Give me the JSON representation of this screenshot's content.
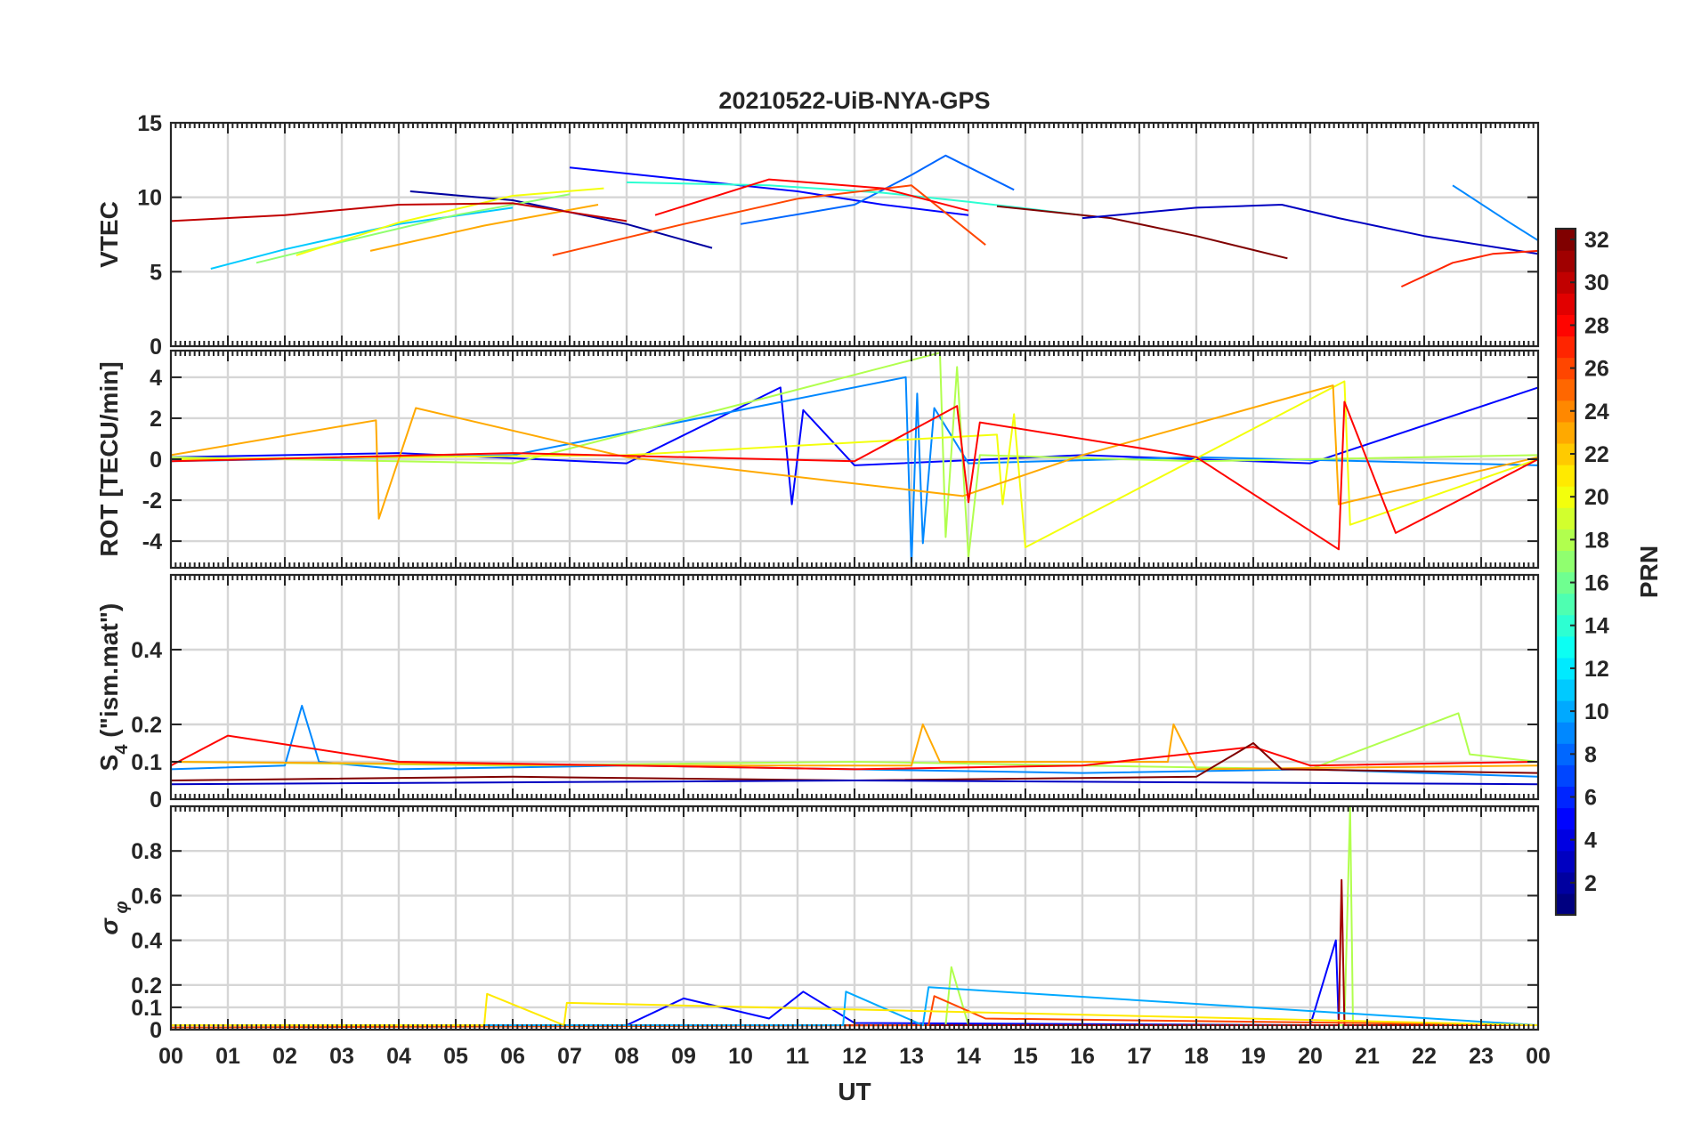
{
  "chart_data": {
    "type": "line",
    "title": "20210522-UiB-NYA-GPS",
    "xlabel": "UT",
    "x_ticks": [
      "00",
      "01",
      "02",
      "03",
      "04",
      "05",
      "06",
      "07",
      "08",
      "09",
      "10",
      "11",
      "12",
      "13",
      "14",
      "15",
      "16",
      "17",
      "18",
      "19",
      "20",
      "21",
      "22",
      "23",
      "00"
    ],
    "xlim": [
      0,
      24
    ],
    "colorbar": {
      "label": "PRN",
      "range": [
        1,
        32
      ],
      "ticks": [
        "2",
        "4",
        "6",
        "8",
        "10",
        "12",
        "14",
        "16",
        "18",
        "20",
        "22",
        "24",
        "26",
        "28",
        "30",
        "32"
      ],
      "colormap": "jet"
    },
    "panels": [
      {
        "ylabel": "VTEC",
        "ylim": [
          0,
          15
        ],
        "y_ticks": [
          0,
          5,
          10,
          15
        ],
        "series": [
          {
            "prn": 2,
            "x": [
              4.2,
              6,
              8,
              9.5
            ],
            "y": [
              10.4,
              9.8,
              8.2,
              6.6
            ]
          },
          {
            "prn": 5,
            "x": [
              7,
              9,
              11,
              12.5,
              14
            ],
            "y": [
              12,
              11.2,
              10.4,
              9.5,
              8.8
            ]
          },
          {
            "prn": 8,
            "x": [
              10,
              12,
              13,
              13.6,
              14.8
            ],
            "y": [
              8.2,
              9.5,
              11.5,
              12.8,
              10.5
            ]
          },
          {
            "prn": 11,
            "x": [
              0.7,
              2,
              4,
              6
            ],
            "y": [
              5.2,
              6.5,
              8.2,
              9.3
            ]
          },
          {
            "prn": 14,
            "x": [
              8,
              10.5,
              12.5,
              14,
              16
            ],
            "y": [
              11,
              10.8,
              10.3,
              9.7,
              8.8
            ]
          },
          {
            "prn": 17,
            "x": [
              1.5,
              3,
              5,
              7
            ],
            "y": [
              5.6,
              7,
              8.8,
              10.2
            ]
          },
          {
            "prn": 20,
            "x": [
              2.2,
              4,
              6,
              7.6
            ],
            "y": [
              6.1,
              8.3,
              10.1,
              10.6
            ]
          },
          {
            "prn": 23,
            "x": [
              3.5,
              5.5,
              7.5
            ],
            "y": [
              6.4,
              8.1,
              9.5
            ]
          },
          {
            "prn": 26,
            "x": [
              6.7,
              9,
              11,
              13,
              14.3
            ],
            "y": [
              6.1,
              8.2,
              9.9,
              10.8,
              6.8
            ]
          },
          {
            "prn": 28,
            "x": [
              8.5,
              10.5,
              12.5,
              14
            ],
            "y": [
              8.8,
              11.2,
              10.6,
              9.1
            ]
          },
          {
            "prn": 30,
            "x": [
              0,
              2,
              4,
              6,
              8
            ],
            "y": [
              8.4,
              8.8,
              9.5,
              9.6,
              8.4
            ]
          },
          {
            "prn": 32,
            "x": [
              14.5,
              16.5,
              18,
              19.6
            ],
            "y": [
              9.4,
              8.6,
              7.4,
              5.9
            ]
          },
          {
            "prn": 3,
            "x": [
              16,
              18,
              19.5,
              20.5,
              22,
              24
            ],
            "y": [
              8.6,
              9.3,
              9.5,
              8.6,
              7.4,
              6.2
            ]
          },
          {
            "prn": 27,
            "x": [
              21.6,
              22.5,
              23.2,
              24
            ],
            "y": [
              4,
              5.6,
              6.2,
              6.4
            ]
          },
          {
            "prn": 9,
            "x": [
              22.5,
              23.5,
              24
            ],
            "y": [
              10.8,
              8.3,
              7.1
            ]
          }
        ]
      },
      {
        "ylabel": "ROT [TECU/min]",
        "ylim": [
          -5.3,
          5.3
        ],
        "y_ticks": [
          -4,
          -2,
          0,
          2,
          4
        ],
        "series": [
          {
            "prn": 5,
            "x": [
              0,
              4,
              8,
              10.7,
              10.9,
              11.1,
              12,
              16,
              20,
              24
            ],
            "y": [
              0.1,
              0.3,
              -0.2,
              3.5,
              -2.2,
              2.4,
              -0.3,
              0.2,
              -0.2,
              3.5
            ]
          },
          {
            "prn": 9,
            "x": [
              0,
              6,
              12.9,
              13.0,
              13.1,
              13.2,
              13.4,
              14,
              18,
              24
            ],
            "y": [
              -0.1,
              0.2,
              4,
              -5.2,
              3.2,
              -4.1,
              2.5,
              -0.2,
              0.1,
              -0.3
            ]
          },
          {
            "prn": 18,
            "x": [
              0,
              6,
              13.5,
              13.6,
              13.8,
              14.0,
              14.2,
              18,
              24
            ],
            "y": [
              0.1,
              -0.2,
              5.2,
              -3.8,
              4.5,
              -4.8,
              0.2,
              -0.1,
              0.2
            ]
          },
          {
            "prn": 20,
            "x": [
              0,
              8,
              14.5,
              14.6,
              14.8,
              15,
              20.6,
              20.7,
              24
            ],
            "y": [
              0,
              0.2,
              1.2,
              -2.2,
              2.2,
              -4.3,
              3.8,
              -3.2,
              0
            ]
          },
          {
            "prn": 23,
            "x": [
              0,
              3.6,
              3.65,
              4.3,
              8,
              13.9,
              16,
              20.4,
              20.5,
              24
            ],
            "y": [
              0.2,
              1.9,
              -2.9,
              2.5,
              0.1,
              -1.8,
              0.2,
              3.6,
              -2.2,
              0.1
            ]
          },
          {
            "prn": 28,
            "x": [
              0,
              6,
              12,
              13.8,
              14.0,
              14.2,
              18,
              20.5,
              20.6,
              21.5,
              24
            ],
            "y": [
              -0.1,
              0.3,
              -0.1,
              2.6,
              -2.1,
              1.8,
              0.1,
              -4.4,
              2.8,
              -3.6,
              0
            ]
          }
        ]
      },
      {
        "ylabel": "S4 (\"ism.mat\")",
        "ylim": [
          0,
          0.6
        ],
        "y_ticks": [
          0,
          0.1,
          0.2,
          0.4
        ],
        "series": [
          {
            "prn": 9,
            "x": [
              0,
              2,
              2.3,
              2.6,
              4,
              8,
              12,
              16,
              20,
              22,
              24
            ],
            "y": [
              0.08,
              0.09,
              0.25,
              0.1,
              0.08,
              0.09,
              0.08,
              0.07,
              0.08,
              0.07,
              0.06
            ]
          },
          {
            "prn": 18,
            "x": [
              0,
              6,
              12,
              16,
              20,
              22.6,
              22.8,
              24
            ],
            "y": [
              0.1,
              0.09,
              0.1,
              0.09,
              0.08,
              0.23,
              0.12,
              0.1
            ]
          },
          {
            "prn": 23,
            "x": [
              0,
              8,
              13,
              13.2,
              13.5,
              17.5,
              17.6,
              18,
              24
            ],
            "y": [
              0.1,
              0.09,
              0.09,
              0.2,
              0.1,
              0.1,
              0.2,
              0.08,
              0.09
            ]
          },
          {
            "prn": 28,
            "x": [
              0,
              1,
              4,
              8,
              12,
              16,
              19,
              20,
              24
            ],
            "y": [
              0.09,
              0.17,
              0.1,
              0.09,
              0.08,
              0.09,
              0.14,
              0.09,
              0.1
            ]
          },
          {
            "prn": 32,
            "x": [
              0,
              6,
              12,
              18,
              19,
              19.5,
              24
            ],
            "y": [
              0.05,
              0.06,
              0.05,
              0.06,
              0.15,
              0.08,
              0.07
            ]
          },
          {
            "prn": 3,
            "x": [
              0,
              12,
              24
            ],
            "y": [
              0.04,
              0.05,
              0.04
            ]
          }
        ]
      },
      {
        "ylabel": "σ φ",
        "ylim": [
          0,
          1
        ],
        "y_ticks": [
          0,
          0.1,
          0.2,
          0.4,
          0.6,
          0.8
        ],
        "series": [
          {
            "prn": 5,
            "x": [
              0,
              8,
              9,
              10.5,
              11.1,
              12,
              20,
              20.45,
              20.5,
              21,
              24
            ],
            "y": [
              0.02,
              0.02,
              0.14,
              0.05,
              0.17,
              0.03,
              0.02,
              0.4,
              0.02,
              0.02,
              0.02
            ]
          },
          {
            "prn": 18,
            "x": [
              0,
              13.6,
              13.7,
              14,
              20.6,
              20.7,
              20.75,
              21,
              24
            ],
            "y": [
              0.02,
              0.02,
              0.28,
              0.02,
              0.02,
              1.0,
              0.02,
              0.02,
              0.02
            ]
          },
          {
            "prn": 31,
            "x": [
              0,
              20.5,
              20.55,
              20.6,
              24
            ],
            "y": [
              0.02,
              0.02,
              0.67,
              0.02,
              0.02
            ]
          },
          {
            "prn": 26,
            "x": [
              0,
              13.3,
              13.4,
              14.3,
              24
            ],
            "y": [
              0.01,
              0.02,
              0.15,
              0.05,
              0.02
            ]
          },
          {
            "prn": 10,
            "x": [
              0,
              11.8,
              11.85,
              13.2,
              13.3,
              24
            ],
            "y": [
              0.02,
              0.02,
              0.17,
              0.02,
              0.19,
              0.02
            ]
          },
          {
            "prn": 21,
            "x": [
              0,
              5.5,
              5.55,
              6.9,
              6.95,
              24
            ],
            "y": [
              0.02,
              0.02,
              0.16,
              0.02,
              0.12,
              0.02
            ]
          }
        ]
      }
    ]
  }
}
